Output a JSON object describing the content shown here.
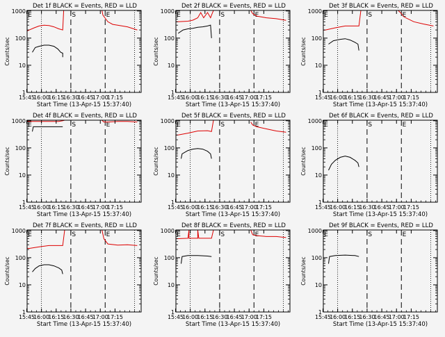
{
  "figure": {
    "ylabel": "Counts/sec",
    "xlabel": "Start Time (13-Apr-15 15:37:40)",
    "yticks": [
      "1",
      "10",
      "100",
      "1000"
    ],
    "xticks": [
      "15:45",
      "16:00",
      "16:15",
      "16:30",
      "16:45",
      "17:00",
      "17:15"
    ],
    "colors": {
      "events": "#000000",
      "lld": "#dd0000",
      "axes": "#000000",
      "background": "#f4f4f4"
    }
  },
  "chart_data": [
    {
      "type": "line",
      "title": "Det 1f BLACK = Events, RED = LLD",
      "markers": [
        "E",
        "S",
        "E"
      ],
      "x_range_min": [
        7.7,
        124
      ],
      "yscale": "log",
      "ylim": [
        1,
        1000
      ],
      "series": [
        {
          "name": "BLACK = Events",
          "color": "#000000",
          "segments": [
            {
              "x": [
                13,
                16,
                20,
                25,
                30,
                35,
                39,
                42,
                44,
                44
              ],
              "y": [
                30,
                45,
                50,
                55,
                55,
                50,
                40,
                30,
                28,
                20
              ]
            }
          ]
        },
        {
          "name": "RED = LLD",
          "color": "#dd0000",
          "segments": [
            {
              "x": [
                0,
                5,
                10,
                15,
                20,
                25,
                30,
                35,
                40,
                44,
                45,
                50
              ],
              "y": [
                175,
                165,
                200,
                240,
                280,
                300,
                290,
                260,
                220,
                200,
                1200,
                1200
              ]
            },
            {
              "x": [
                84,
                85,
                90,
                95,
                100,
                110,
                120
              ],
              "y": [
                1200,
                700,
                400,
                320,
                300,
                260,
                200
              ]
            }
          ]
        }
      ]
    },
    {
      "type": "line",
      "title": "Det 2f BLACK = Events, RED = LLD",
      "markers": [
        "E",
        "S",
        "E"
      ],
      "x_range_min": [
        7.7,
        124
      ],
      "yscale": "log",
      "ylim": [
        1,
        1000
      ],
      "series": [
        {
          "name": "BLACK = Events",
          "color": "#000000",
          "segments": [
            {
              "x": [
                10,
                15,
                20,
                25,
                30,
                35,
                40,
                43,
                44
              ],
              "y": [
                150,
                200,
                220,
                230,
                250,
                260,
                280,
                300,
                100
              ]
            }
          ]
        },
        {
          "name": "RED = LLD",
          "color": "#dd0000",
          "segments": [
            {
              "x": [
                0,
                10,
                20,
                25,
                30,
                33,
                36,
                40,
                43,
                44,
                46,
                50
              ],
              "y": [
                400,
                400,
                420,
                460,
                560,
                880,
                560,
                880,
                560,
                700,
                1200,
                1200
              ]
            },
            {
              "x": [
                84,
                86,
                90,
                95,
                100,
                110,
                120
              ],
              "y": [
                1200,
                800,
                650,
                600,
                560,
                520,
                450
              ]
            }
          ]
        }
      ]
    },
    {
      "type": "line",
      "title": "Det 3f BLACK = Events, RED = LLD",
      "markers": [
        "E",
        "S",
        "E"
      ],
      "x_range_min": [
        7.7,
        124
      ],
      "yscale": "log",
      "ylim": [
        1,
        1000
      ],
      "series": [
        {
          "name": "BLACK = Events",
          "color": "#000000",
          "segments": [
            {
              "x": [
                13,
                18,
                25,
                30,
                35,
                40,
                43,
                44
              ],
              "y": [
                60,
                80,
                90,
                95,
                85,
                70,
                60,
                35
              ]
            }
          ]
        },
        {
          "name": "RED = LLD",
          "color": "#dd0000",
          "segments": [
            {
              "x": [
                0,
                10,
                20,
                30,
                40,
                44,
                46,
                50
              ],
              "y": [
                180,
                200,
                240,
                280,
                280,
                280,
                1200,
                1200
              ]
            },
            {
              "x": [
                84,
                86,
                90,
                100,
                110,
                120
              ],
              "y": [
                1200,
                900,
                600,
                400,
                330,
                280
              ]
            }
          ]
        }
      ]
    },
    {
      "type": "line",
      "title": "Det 4f BLACK = Events, RED = LLD",
      "markers": [
        "E",
        "S",
        "E"
      ],
      "x_range_min": [
        7.7,
        124
      ],
      "yscale": "log",
      "ylim": [
        1,
        1000
      ],
      "series": [
        {
          "name": "BLACK = Events",
          "color": "#000000",
          "segments": [
            {
              "x": [
                13,
                14,
                20,
                30,
                40,
                44
              ],
              "y": [
                400,
                600,
                600,
                600,
                600,
                600
              ]
            }
          ]
        },
        {
          "name": "RED = LLD",
          "color": "#dd0000",
          "segments": [
            {
              "x": [
                0,
                10,
                20,
                30,
                40,
                44,
                46,
                50
              ],
              "y": [
                950,
                950,
                950,
                950,
                950,
                1000,
                1200,
                1200
              ]
            },
            {
              "x": [
                84,
                86,
                90,
                100,
                110,
                120
              ],
              "y": [
                1200,
                900,
                900,
                950,
                950,
                900
              ]
            }
          ]
        }
      ]
    },
    {
      "type": "line",
      "title": "Det 5f BLACK = Events, RED = LLD",
      "markers": [
        "E",
        "S",
        "E"
      ],
      "x_range_min": [
        7.7,
        124
      ],
      "yscale": "log",
      "ylim": [
        1,
        1000
      ],
      "series": [
        {
          "name": "BLACK = Events",
          "color": "#000000",
          "segments": [
            {
              "x": [
                13,
                14,
                20,
                25,
                30,
                35,
                40,
                43,
                44
              ],
              "y": [
                40,
                60,
                80,
                90,
                95,
                90,
                75,
                60,
                40
              ]
            }
          ]
        },
        {
          "name": "RED = LLD",
          "color": "#dd0000",
          "segments": [
            {
              "x": [
                0,
                10,
                20,
                30,
                40,
                44,
                46,
                50
              ],
              "y": [
                280,
                300,
                350,
                420,
                430,
                400,
                1200,
                1200
              ]
            },
            {
              "x": [
                84,
                86,
                90,
                100,
                110,
                120
              ],
              "y": [
                900,
                700,
                600,
                500,
                420,
                380
              ]
            }
          ]
        }
      ]
    },
    {
      "type": "line",
      "title": "Det 6f BLACK = Events, RED = LLD",
      "markers": [
        "E",
        "S",
        "E"
      ],
      "x_range_min": [
        7.7,
        124
      ],
      "yscale": "log",
      "ylim": [
        1,
        1000
      ],
      "series": [
        {
          "name": "BLACK = Events",
          "color": "#000000",
          "segments": [
            {
              "x": [
                13,
                16,
                20,
                25,
                30,
                35,
                40,
                43,
                44
              ],
              "y": [
                15,
                25,
                35,
                45,
                50,
                45,
                35,
                28,
                20
              ]
            }
          ]
        }
      ]
    },
    {
      "type": "line",
      "title": "Det 7f BLACK = Events, RED = LLD",
      "markers": [
        "E",
        "S",
        "E"
      ],
      "x_range_min": [
        7.7,
        124
      ],
      "yscale": "log",
      "ylim": [
        1,
        1000
      ],
      "series": [
        {
          "name": "BLACK = Events",
          "color": "#000000",
          "segments": [
            {
              "x": [
                13,
                16,
                20,
                25,
                30,
                35,
                40,
                43,
                44
              ],
              "y": [
                30,
                40,
                50,
                55,
                55,
                50,
                42,
                35,
                25
              ]
            }
          ]
        },
        {
          "name": "RED = LLD",
          "color": "#dd0000",
          "segments": [
            {
              "x": [
                0,
                10,
                20,
                30,
                40,
                44,
                46,
                50
              ],
              "y": [
                230,
                220,
                250,
                280,
                280,
                280,
                1200,
                1200
              ]
            },
            {
              "x": [
                84,
                86,
                90,
                100,
                110,
                120
              ],
              "y": [
                1200,
                500,
                320,
                290,
                300,
                280
              ]
            }
          ]
        }
      ]
    },
    {
      "type": "line",
      "title": "Det 8f BLACK = Events, RED = LLD",
      "markers": [
        "E",
        "S",
        "E"
      ],
      "x_range_min": [
        7.7,
        124
      ],
      "yscale": "log",
      "ylim": [
        1,
        1000
      ],
      "series": [
        {
          "name": "BLACK = Events",
          "color": "#000000",
          "segments": [
            {
              "x": [
                13,
                14,
                20,
                30,
                40,
                44
              ],
              "y": [
                60,
                110,
                120,
                120,
                115,
                110
              ]
            }
          ]
        },
        {
          "name": "RED = LLD",
          "color": "#dd0000",
          "segments": [
            {
              "x": [
                0,
                10,
                20,
                21,
                21,
                30,
                30,
                31,
                40,
                44,
                46,
                50
              ],
              "y": [
                480,
                500,
                520,
                1200,
                520,
                520,
                1200,
                520,
                520,
                520,
                1200,
                1200
              ]
            },
            {
              "x": [
                84,
                86,
                90,
                100,
                110,
                120
              ],
              "y": [
                1200,
                700,
                650,
                600,
                600,
                550
              ]
            }
          ]
        }
      ]
    },
    {
      "type": "line",
      "title": "Det 9f BLACK = Events, RED = LLD",
      "markers": [
        "E",
        "S",
        "E"
      ],
      "x_range_min": [
        7.7,
        124
      ],
      "yscale": "log",
      "ylim": [
        1,
        1000
      ],
      "series": [
        {
          "name": "BLACK = Events",
          "color": "#000000",
          "segments": [
            {
              "x": [
                13,
                14,
                20,
                30,
                40,
                44
              ],
              "y": [
                60,
                110,
                120,
                125,
                120,
                110
              ]
            }
          ]
        }
      ]
    }
  ]
}
